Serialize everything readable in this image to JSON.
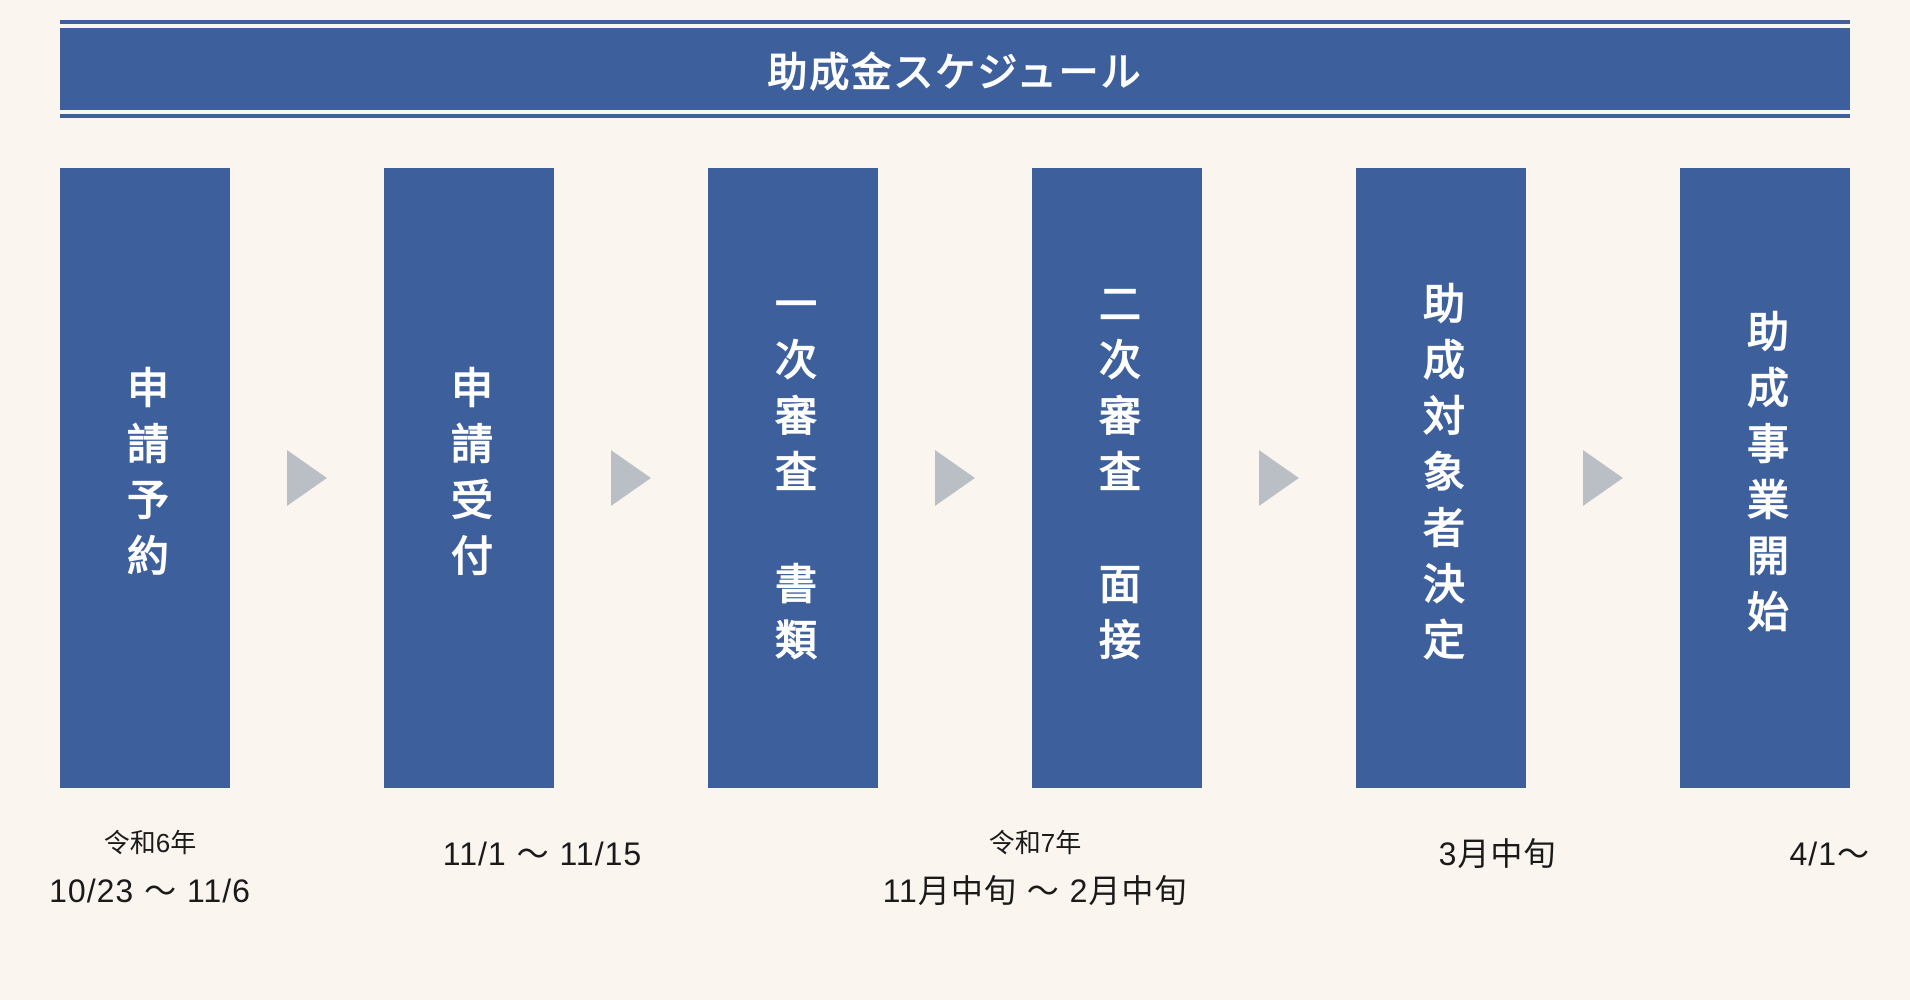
{
  "title": "助成金スケジュール",
  "colors": {
    "primary": "#3d5f9c",
    "background": "#faf5ef",
    "arrow": "#b9bfc4",
    "text_dark": "#1a1a1a",
    "text_light": "#ffffff"
  },
  "typography": {
    "title_fontsize": 40,
    "step_fontsize": 42,
    "date_era_fontsize": 26,
    "date_range_fontsize": 32
  },
  "layout": {
    "step_box_width": 170,
    "step_box_height": 620,
    "arrow_size": 40
  },
  "steps": [
    {
      "label": "申請予約"
    },
    {
      "label": "申請受付"
    },
    {
      "label": "一次審査　書類"
    },
    {
      "label": "二次審査　面接"
    },
    {
      "label": "助成対象者決定"
    },
    {
      "label": "助成事業開始"
    }
  ],
  "dates": {
    "slot1": {
      "era": "令和6年",
      "range": "10/23 ～ 11/6"
    },
    "slot2": {
      "era": "",
      "range": "11/1 ～ 11/15"
    },
    "slot_mid": {
      "era": "令和7年",
      "range": "11月中旬 ～ 2月中旬"
    },
    "slot5": {
      "era": "",
      "range": "3月中旬"
    },
    "slot6": {
      "era": "",
      "range": "4/1～"
    }
  }
}
